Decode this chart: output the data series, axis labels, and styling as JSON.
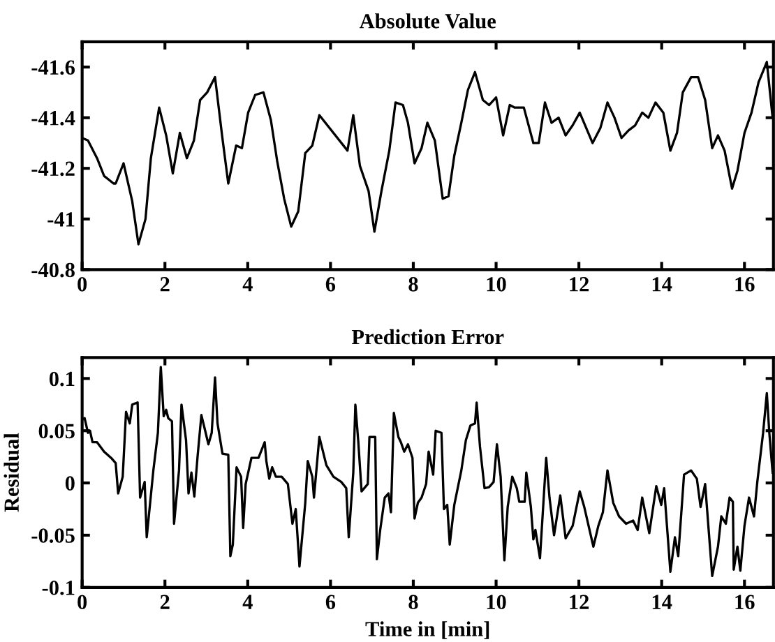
{
  "chart_data": [
    {
      "type": "line",
      "title": "Absolute Value",
      "xlim": [
        0,
        16.7
      ],
      "xticks": [
        0,
        2,
        4,
        6,
        8,
        10,
        12,
        14,
        16
      ],
      "ylim": [
        -40.8,
        -41.7
      ],
      "yticks": [
        -41.6,
        -41.4,
        -41.2,
        -41,
        -40.8
      ],
      "series": [
        {
          "color": "#000000",
          "x": [
            0,
            0.14,
            0.36,
            0.53,
            0.76,
            0.81,
            1.0,
            1.21,
            1.36,
            1.53,
            1.66,
            1.86,
            2.03,
            2.19,
            2.36,
            2.53,
            2.7,
            2.85,
            3.02,
            3.21,
            3.38,
            3.53,
            3.72,
            3.86,
            4.01,
            4.18,
            4.38,
            4.56,
            4.71,
            4.88,
            5.05,
            5.22,
            5.39,
            5.56,
            5.73,
            6.41,
            6.55,
            6.71,
            6.92,
            7.06,
            7.23,
            7.42,
            7.57,
            7.75,
            7.87,
            8.03,
            8.2,
            8.34,
            8.52,
            8.71,
            8.85,
            8.99,
            9.16,
            9.32,
            9.49,
            9.68,
            9.83,
            10.0,
            10.17,
            10.33,
            10.45,
            10.67,
            10.9,
            11.03,
            11.18,
            11.34,
            11.51,
            11.68,
            11.85,
            12.02,
            12.33,
            12.52,
            12.69,
            12.86,
            13.03,
            13.2,
            13.36,
            13.53,
            13.68,
            13.85,
            14.04,
            14.21,
            14.37,
            14.51,
            14.71,
            14.88,
            15.05,
            15.22,
            15.36,
            15.52,
            15.7,
            15.83,
            16.0,
            16.17,
            16.34,
            16.54,
            16.68
          ],
          "values": [
            -41.32,
            -41.31,
            -41.24,
            -41.17,
            -41.14,
            -41.14,
            -41.22,
            -41.07,
            -40.9,
            -41.0,
            -41.24,
            -41.44,
            -41.33,
            -41.18,
            -41.34,
            -41.24,
            -41.31,
            -41.47,
            -41.5,
            -41.56,
            -41.33,
            -41.14,
            -41.29,
            -41.28,
            -41.42,
            -41.49,
            -41.5,
            -41.39,
            -41.23,
            -41.08,
            -40.97,
            -41.03,
            -41.26,
            -41.29,
            -41.41,
            -41.27,
            -41.41,
            -41.21,
            -41.11,
            -40.95,
            -41.11,
            -41.27,
            -41.46,
            -41.45,
            -41.38,
            -41.22,
            -41.28,
            -41.38,
            -41.31,
            -41.08,
            -41.09,
            -41.25,
            -41.38,
            -41.51,
            -41.58,
            -41.47,
            -41.45,
            -41.48,
            -41.33,
            -41.45,
            -41.44,
            -41.44,
            -41.3,
            -41.3,
            -41.46,
            -41.38,
            -41.4,
            -41.33,
            -41.37,
            -41.42,
            -41.3,
            -41.36,
            -41.46,
            -41.4,
            -41.32,
            -41.35,
            -41.37,
            -41.42,
            -41.4,
            -41.46,
            -41.42,
            -41.27,
            -41.34,
            -41.5,
            -41.56,
            -41.56,
            -41.47,
            -41.28,
            -41.33,
            -41.27,
            -41.12,
            -41.19,
            -41.34,
            -41.42,
            -41.54,
            -41.62,
            -41.4
          ]
        }
      ]
    },
    {
      "type": "line",
      "title": "Prediction Error",
      "xlabel": "Time in [min]",
      "ylabel": "Residual",
      "xlim": [
        0,
        16.7
      ],
      "xticks": [
        0,
        2,
        4,
        6,
        8,
        10,
        12,
        14,
        16
      ],
      "ylim": [
        -0.1,
        0.12
      ],
      "yticks": [
        -0.1,
        -0.05,
        0,
        0.05,
        0.1
      ],
      "series": [
        {
          "color": "#000000",
          "x": [
            0,
            0.06,
            0.14,
            0.19,
            0.25,
            0.36,
            0.53,
            0.7,
            0.81,
            0.87,
            0.98,
            1.06,
            1.15,
            1.21,
            1.34,
            1.4,
            1.51,
            1.56,
            1.72,
            1.83,
            1.9,
            1.97,
            2.03,
            2.08,
            2.17,
            2.22,
            2.34,
            2.4,
            2.51,
            2.57,
            2.64,
            2.71,
            2.79,
            2.88,
            2.96,
            3.05,
            3.13,
            3.21,
            3.27,
            3.39,
            3.53,
            3.58,
            3.64,
            3.73,
            3.84,
            3.89,
            3.95,
            4.09,
            4.26,
            4.41,
            4.45,
            4.52,
            4.59,
            4.68,
            4.82,
            4.97,
            5.08,
            5.16,
            5.25,
            5.39,
            5.45,
            5.56,
            5.6,
            5.73,
            5.9,
            6.07,
            6.26,
            6.38,
            6.44,
            6.55,
            6.6,
            6.67,
            6.75,
            6.9,
            6.94,
            7.08,
            7.12,
            7.2,
            7.31,
            7.4,
            7.46,
            7.53,
            7.64,
            7.7,
            7.78,
            7.87,
            7.98,
            8.03,
            8.11,
            8.2,
            8.31,
            8.37,
            8.48,
            8.54,
            8.68,
            8.74,
            8.82,
            8.88,
            8.99,
            9.16,
            9.27,
            9.38,
            9.49,
            9.53,
            9.61,
            9.72,
            9.83,
            9.94,
            10.02,
            10.11,
            10.2,
            10.28,
            10.39,
            10.5,
            10.56,
            10.69,
            10.73,
            10.84,
            10.9,
            10.95,
            11.06,
            11.21,
            11.29,
            11.4,
            11.55,
            11.68,
            11.85,
            12.02,
            12.13,
            12.35,
            12.47,
            12.58,
            12.69,
            12.83,
            12.97,
            13.14,
            13.31,
            13.42,
            13.53,
            13.7,
            13.87,
            13.99,
            14.06,
            14.21,
            14.32,
            14.4,
            14.54,
            14.71,
            14.85,
            14.94,
            15.05,
            15.22,
            15.36,
            15.44,
            15.55,
            15.64,
            15.72,
            15.74,
            15.83,
            15.9,
            16.0,
            16.11,
            16.23,
            16.31,
            16.45,
            16.54,
            16.6,
            16.68
          ],
          "values": [
            0.061,
            0.062,
            0.048,
            0.05,
            0.039,
            0.039,
            0.03,
            0.024,
            0.019,
            -0.01,
            0.006,
            0.068,
            0.057,
            0.075,
            0.077,
            -0.014,
            0.001,
            -0.052,
            0.012,
            0.048,
            0.111,
            0.064,
            0.07,
            0.062,
            0.059,
            -0.039,
            0.012,
            0.075,
            0.041,
            -0.01,
            0.01,
            -0.013,
            0.026,
            0.065,
            0.052,
            0.037,
            0.048,
            0.101,
            0.057,
            0.028,
            0.027,
            -0.07,
            -0.059,
            0.015,
            0.006,
            -0.043,
            -0.001,
            0.024,
            0.024,
            0.039,
            0.021,
            0.004,
            0.015,
            0.006,
            0.006,
            -0.001,
            -0.039,
            -0.025,
            -0.08,
            -0.019,
            0.021,
            0.006,
            -0.014,
            0.044,
            0.017,
            0.006,
            0.001,
            -0.005,
            -0.052,
            0.01,
            0.075,
            0.04,
            -0.008,
            -0.001,
            0.044,
            0.044,
            -0.073,
            -0.045,
            -0.014,
            -0.01,
            -0.028,
            0.067,
            0.044,
            0.039,
            0.03,
            0.037,
            0.024,
            -0.034,
            -0.019,
            -0.014,
            -0.001,
            0.03,
            0.008,
            0.05,
            0.048,
            -0.025,
            -0.021,
            -0.059,
            -0.021,
            0.012,
            0.041,
            0.055,
            0.057,
            0.077,
            0.035,
            -0.005,
            -0.004,
            0.001,
            0.037,
            0.006,
            -0.074,
            -0.023,
            0.006,
            -0.005,
            -0.018,
            -0.018,
            0.01,
            -0.023,
            -0.054,
            -0.045,
            -0.072,
            0.024,
            -0.014,
            -0.05,
            -0.012,
            -0.053,
            -0.041,
            -0.008,
            -0.023,
            -0.061,
            -0.041,
            -0.028,
            0.012,
            -0.019,
            -0.032,
            -0.039,
            -0.036,
            -0.045,
            -0.014,
            -0.048,
            -0.003,
            -0.021,
            -0.005,
            -0.085,
            -0.052,
            -0.07,
            0.008,
            0.012,
            0.004,
            -0.023,
            -0.001,
            -0.089,
            -0.061,
            -0.032,
            -0.039,
            -0.014,
            -0.018,
            -0.083,
            -0.061,
            -0.084,
            -0.041,
            -0.014,
            -0.032,
            0.001,
            0.048,
            0.086,
            0.048,
            0.01
          ]
        }
      ]
    }
  ]
}
